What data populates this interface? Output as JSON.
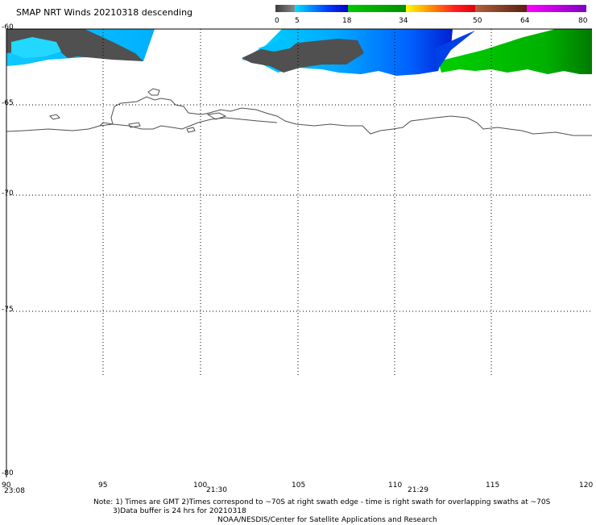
{
  "title": "SMAP NRT Winds  20210318 descending",
  "colorbar": {
    "labels": [
      "0",
      "5",
      "18",
      "34",
      "50",
      "64",
      "80"
    ],
    "segments": [
      {
        "from": 0,
        "to": 5,
        "colors": [
          "#3c3c3c",
          "#8a8a8a"
        ]
      },
      {
        "from": 5,
        "to": 18,
        "colors": [
          "#00e0ff",
          "#0040ff",
          "#0000c8"
        ]
      },
      {
        "from": 18,
        "to": 34,
        "colors": [
          "#00c800",
          "#009000"
        ]
      },
      {
        "from": 34,
        "to": 50,
        "colors": [
          "#ffff00",
          "#ff9000",
          "#ff2020",
          "#e00010"
        ]
      },
      {
        "from": 50,
        "to": 64,
        "colors": [
          "#b06040",
          "#5a2010"
        ]
      },
      {
        "from": 64,
        "to": 80,
        "colors": [
          "#ff00ff",
          "#8000c0"
        ]
      }
    ]
  },
  "latitude_labels": [
    "-60",
    "-65",
    "-70",
    "-75",
    "-80"
  ],
  "longitude_labels": [
    "90",
    "95",
    "100",
    "105",
    "110",
    "115",
    "120"
  ],
  "pass_times": [
    "23:08",
    "21:30",
    "21:29"
  ],
  "notes": {
    "line1": "Note: 1) Times are GMT 2)Times correspond to ~70S at right swath edge - time is right swath for overlapping swaths at ~70S",
    "line2": "3)Data buffer is 24 hrs for 20210318",
    "line3": "NOAA/NESDIS/Center for Satellite Applications and Research"
  },
  "map": {
    "lat_range": [
      -80,
      -60
    ],
    "lon_range": [
      90,
      120
    ],
    "graticule": "dotted"
  }
}
